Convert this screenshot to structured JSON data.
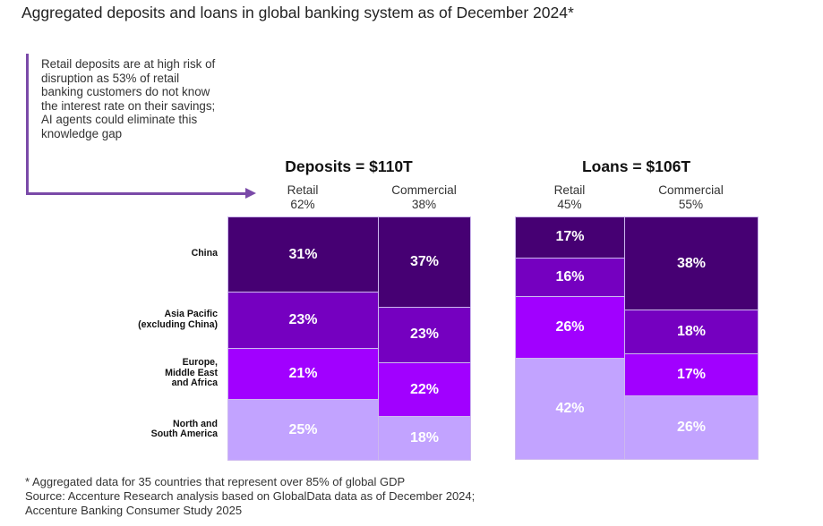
{
  "title": "Aggregated deposits and loans in global banking system as of December 2024*",
  "annotation": "Retail deposits are at high risk of disruption as 53% of retail banking customers do not know the interest rate on their savings; AI agents could eliminate this knowledge gap",
  "colors": {
    "China": "#460073",
    "Asia Pacific": "#7500c0",
    "Europe": "#a100ff",
    "Americas": "#c2a3ff",
    "annotation": "#7a4aa8"
  },
  "chart_data": [
    {
      "type": "marimekko",
      "title": "Deposits = $110T",
      "row_labels": [
        "China",
        "Asia Pacific (excluding China)",
        "Europe, Middle East and Africa",
        "North and South America"
      ],
      "columns": [
        {
          "name": "Retail",
          "share_label": "62%",
          "share": 62,
          "values": [
            31,
            23,
            21,
            25
          ],
          "labels": [
            "31%",
            "23%",
            "21%",
            "25%"
          ]
        },
        {
          "name": "Commercial",
          "share_label": "38%",
          "share": 38,
          "values": [
            37,
            23,
            22,
            18
          ],
          "labels": [
            "37%",
            "23%",
            "22%",
            "18%"
          ]
        }
      ]
    },
    {
      "type": "marimekko",
      "title": "Loans = $106T",
      "row_labels": [
        "China",
        "Asia Pacific (excluding China)",
        "Europe, Middle East and Africa",
        "North and South America"
      ],
      "columns": [
        {
          "name": "Retail",
          "share_label": "45%",
          "share": 45,
          "values": [
            17,
            16,
            26,
            42
          ],
          "labels": [
            "17%",
            "16%",
            "26%",
            "42%"
          ]
        },
        {
          "name": "Commercial",
          "share_label": "55%",
          "share": 55,
          "values": [
            38,
            18,
            17,
            26
          ],
          "labels": [
            "38%",
            "18%",
            "17%",
            "26%"
          ]
        }
      ]
    }
  ],
  "row_label_lines": [
    [
      "China"
    ],
    [
      "Asia Pacific",
      "(excluding China)"
    ],
    [
      "Europe,",
      "Middle East",
      "and Africa"
    ],
    [
      "North and",
      "South America"
    ]
  ],
  "footnotes": [
    "* Aggregated data for 35 countries that represent over 85% of global GDP",
    "Source: Accenture Research analysis based on GlobalData data as of December 2024;",
    "Accenture Banking Consumer Study 2025"
  ]
}
